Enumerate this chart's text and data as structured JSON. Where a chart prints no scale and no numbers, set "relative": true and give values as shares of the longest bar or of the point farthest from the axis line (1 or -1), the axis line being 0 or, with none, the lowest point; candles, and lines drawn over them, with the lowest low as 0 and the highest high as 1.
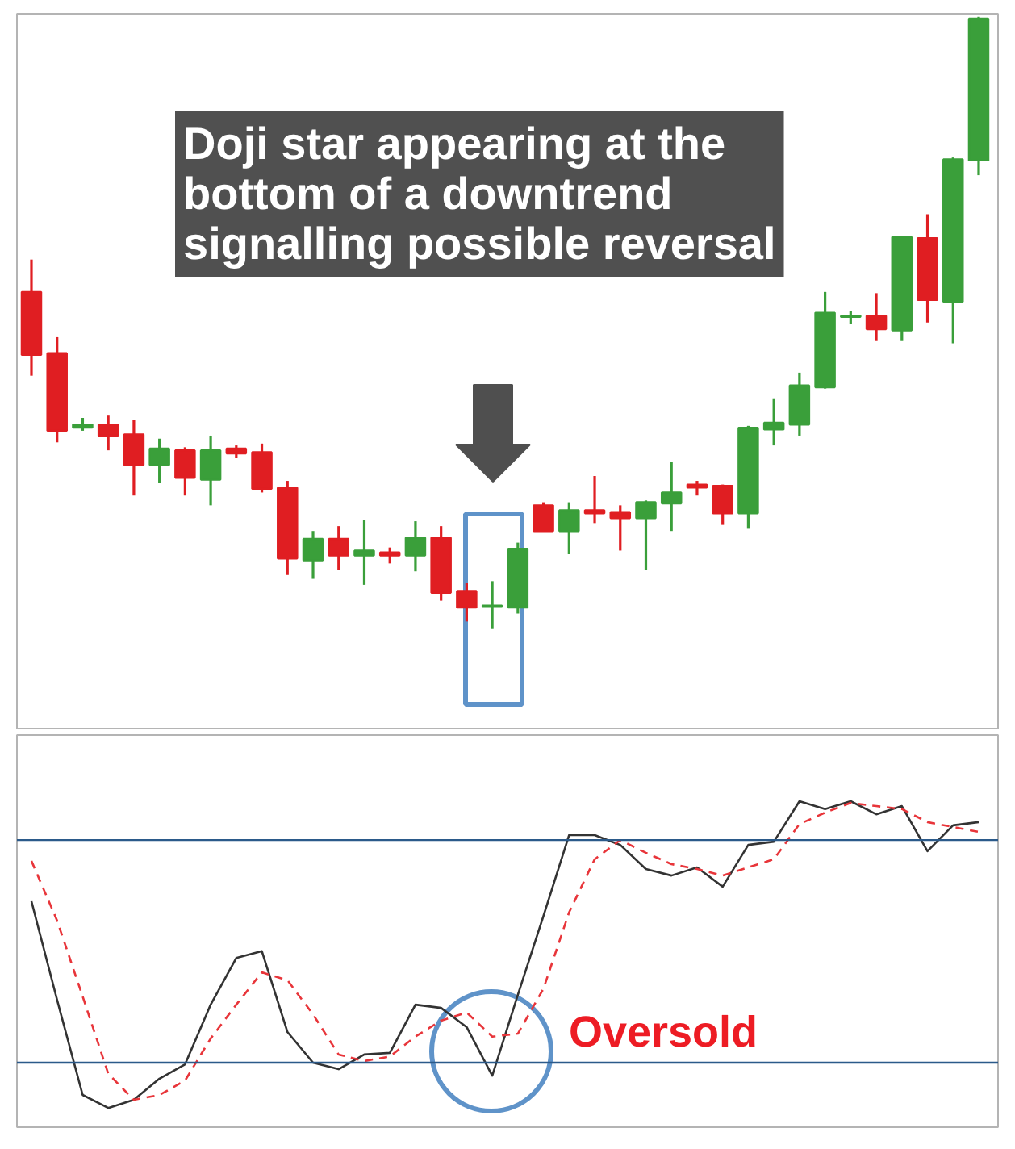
{
  "chart_data": [
    {
      "type": "candlestick",
      "relative": true,
      "categories": [
        null,
        null,
        null,
        null,
        null,
        null,
        null,
        null,
        null,
        null,
        null,
        null,
        null,
        null,
        null,
        null,
        null,
        null,
        null,
        null,
        null,
        null,
        null,
        null,
        null,
        null,
        null,
        null,
        null,
        null,
        null,
        null,
        null,
        null,
        null,
        null,
        null,
        null
      ],
      "ohlc": [
        [
          0.55,
          0.603,
          0.413,
          0.447
        ],
        [
          0.45,
          0.476,
          0.304,
          0.323
        ],
        [
          0.328,
          0.344,
          0.323,
          0.333
        ],
        [
          0.333,
          0.349,
          0.291,
          0.315
        ],
        [
          0.317,
          0.341,
          0.217,
          0.267
        ],
        [
          0.267,
          0.31,
          0.238,
          0.294
        ],
        [
          0.291,
          0.296,
          0.217,
          0.246
        ],
        [
          0.243,
          0.315,
          0.201,
          0.291
        ],
        [
          0.294,
          0.299,
          0.278,
          0.286
        ],
        [
          0.288,
          0.302,
          0.222,
          0.228
        ],
        [
          0.23,
          0.241,
          0.087,
          0.114
        ],
        [
          0.111,
          0.159,
          0.082,
          0.146
        ],
        [
          0.146,
          0.167,
          0.095,
          0.119
        ],
        [
          0.119,
          0.177,
          0.071,
          0.127
        ],
        [
          0.124,
          0.132,
          0.106,
          0.119
        ],
        [
          0.119,
          0.175,
          0.093,
          0.148
        ],
        [
          0.148,
          0.167,
          0.045,
          0.058
        ],
        [
          0.061,
          0.074,
          0.011,
          0.034
        ],
        [
          0.036,
          0.077,
          0.0,
          0.037
        ],
        [
          0.034,
          0.14,
          0.024,
          0.13
        ],
        [
          0.201,
          0.206,
          0.159,
          0.159
        ],
        [
          0.159,
          0.206,
          0.122,
          0.193
        ],
        [
          0.193,
          0.249,
          0.172,
          0.188
        ],
        [
          0.19,
          0.201,
          0.127,
          0.18
        ],
        [
          0.18,
          0.209,
          0.095,
          0.206
        ],
        [
          0.204,
          0.272,
          0.159,
          0.222
        ],
        [
          0.235,
          0.241,
          0.217,
          0.23
        ],
        [
          0.233,
          0.235,
          0.169,
          0.188
        ],
        [
          0.188,
          0.331,
          0.164,
          0.328
        ],
        [
          0.325,
          0.376,
          0.299,
          0.336
        ],
        [
          0.333,
          0.418,
          0.315,
          0.397
        ],
        [
          0.394,
          0.55,
          0.392,
          0.516
        ],
        [
          0.509,
          0.519,
          0.497,
          0.511
        ],
        [
          0.511,
          0.548,
          0.471,
          0.489
        ],
        [
          0.487,
          0.64,
          0.471,
          0.64
        ],
        [
          0.638,
          0.677,
          0.5,
          0.537
        ],
        [
          0.534,
          0.77,
          0.466,
          0.767
        ],
        [
          0.765,
          1.0,
          0.741,
          0.997
        ]
      ],
      "colors": [
        "#e01e22",
        "#e01e22",
        "#3a9f3a",
        "#e01e22",
        "#e01e22",
        "#3a9f3a",
        "#e01e22",
        "#3a9f3a",
        "#e01e22",
        "#e01e22",
        "#e01e22",
        "#3a9f3a",
        "#e01e22",
        "#3a9f3a",
        "#e01e22",
        "#3a9f3a",
        "#e01e22",
        "#e01e22",
        "#3a9f3a",
        "#3a9f3a",
        "#e01e22",
        "#3a9f3a",
        "#e01e22",
        "#e01e22",
        "#3a9f3a",
        "#3a9f3a",
        "#e01e22",
        "#e01e22",
        "#3a9f3a",
        "#3a9f3a",
        "#3a9f3a",
        "#3a9f3a",
        "#3a9f3a",
        "#e01e22",
        "#3a9f3a",
        "#e01e22",
        "#3a9f3a",
        "#3a9f3a"
      ],
      "annotations": [
        "Doji star appearing at the bottom of a downtrend signalling possible reversal"
      ]
    },
    {
      "type": "line",
      "relative": true,
      "categories": [
        null,
        null,
        null,
        null,
        null,
        null,
        null,
        null,
        null,
        null,
        null,
        null,
        null,
        null,
        null,
        null,
        null,
        null,
        null,
        null,
        null,
        null,
        null,
        null,
        null,
        null,
        null,
        null,
        null,
        null,
        null,
        null,
        null,
        null,
        null,
        null,
        null,
        null
      ],
      "series": [
        {
          "color": "#333333",
          "line_style": "solid",
          "values": [
            0.693,
            0.391,
            0.099,
            0.059,
            0.084,
            0.149,
            0.193,
            0.376,
            0.519,
            0.54,
            0.292,
            0.198,
            0.178,
            0.223,
            0.228,
            0.376,
            0.366,
            0.307,
            0.158,
            0.406,
            0.648,
            0.896,
            0.896,
            0.866,
            0.792,
            0.772,
            0.797,
            0.738,
            0.866,
            0.876,
            1.0,
            0.976,
            1.0,
            0.96,
            0.985,
            0.847,
            0.926,
            0.936
          ]
        },
        {
          "color": "#e8353a",
          "line_style": "dashed",
          "values": [
            0.817,
            0.634,
            0.401,
            0.164,
            0.084,
            0.099,
            0.143,
            0.272,
            0.376,
            0.475,
            0.451,
            0.346,
            0.223,
            0.203,
            0.217,
            0.278,
            0.327,
            0.352,
            0.278,
            0.287,
            0.425,
            0.659,
            0.822,
            0.881,
            0.842,
            0.807,
            0.792,
            0.772,
            0.797,
            0.822,
            0.93,
            0.965,
            0.995,
            0.985,
            0.976,
            0.936,
            0.921,
            0.906
          ]
        }
      ],
      "ref_lines": [
        {
          "axis": "y",
          "value": 0.881,
          "color": "#2b5a8a"
        },
        {
          "axis": "y",
          "value": 0.198,
          "color": "#2b5a8a"
        }
      ],
      "annotations": [
        "Oversold"
      ]
    }
  ]
}
